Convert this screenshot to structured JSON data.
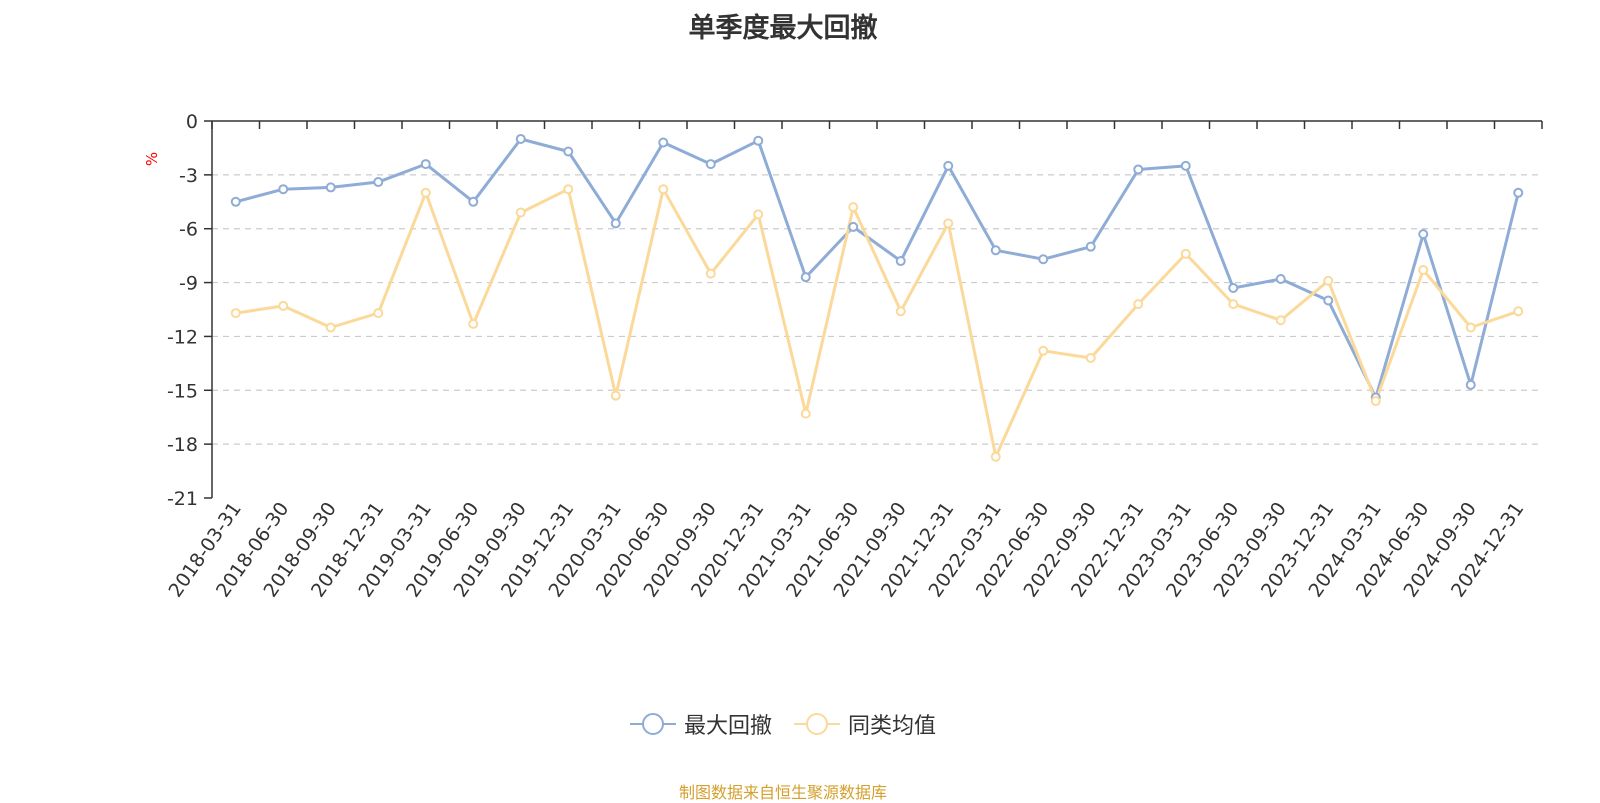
{
  "chart_data": {
    "type": "line",
    "title": "单季度最大回撤",
    "ylabel": "%",
    "ylim": [
      -21,
      0
    ],
    "yticks": [
      "0",
      "-3",
      "-6",
      "-9",
      "-12",
      "-15",
      "-18",
      "-21"
    ],
    "grid": true,
    "legend_position": "bottom",
    "categories": [
      "2018-03-31",
      "2018-06-30",
      "2018-09-30",
      "2018-12-31",
      "2019-03-31",
      "2019-06-30",
      "2019-09-30",
      "2019-12-31",
      "2020-03-31",
      "2020-06-30",
      "2020-09-30",
      "2020-12-31",
      "2021-03-31",
      "2021-06-30",
      "2021-09-30",
      "2021-12-31",
      "2022-03-31",
      "2022-06-30",
      "2022-09-30",
      "2022-12-31",
      "2023-03-31",
      "2023-06-30",
      "2023-09-30",
      "2023-12-31",
      "2024-03-31",
      "2024-06-30",
      "2024-09-30",
      "2024-12-31"
    ],
    "series": [
      {
        "name": "最大回撤",
        "color": "#8eacd6",
        "values": [
          -4.5,
          -3.8,
          -3.7,
          -3.4,
          -2.4,
          -4.5,
          -1.0,
          -1.7,
          -5.7,
          -1.2,
          -2.4,
          -1.1,
          -8.7,
          -5.9,
          -7.8,
          -2.5,
          -7.2,
          -7.7,
          -7.0,
          -2.7,
          -2.5,
          -9.3,
          -8.8,
          -10.0,
          -15.4,
          -6.3,
          -14.7,
          -4.0
        ]
      },
      {
        "name": "同类均值",
        "color": "#fbd99a",
        "values": [
          -10.7,
          -10.3,
          -11.5,
          -10.7,
          -4.0,
          -11.3,
          -5.1,
          -3.8,
          -15.3,
          -3.8,
          -8.5,
          -5.2,
          -16.3,
          -4.8,
          -10.6,
          -5.7,
          -18.7,
          -12.8,
          -13.2,
          -10.2,
          -7.4,
          -10.2,
          -11.1,
          -8.9,
          -15.6,
          -8.3,
          -11.5,
          -10.6
        ]
      }
    ]
  },
  "source": "制图数据来自恒生聚源数据库"
}
